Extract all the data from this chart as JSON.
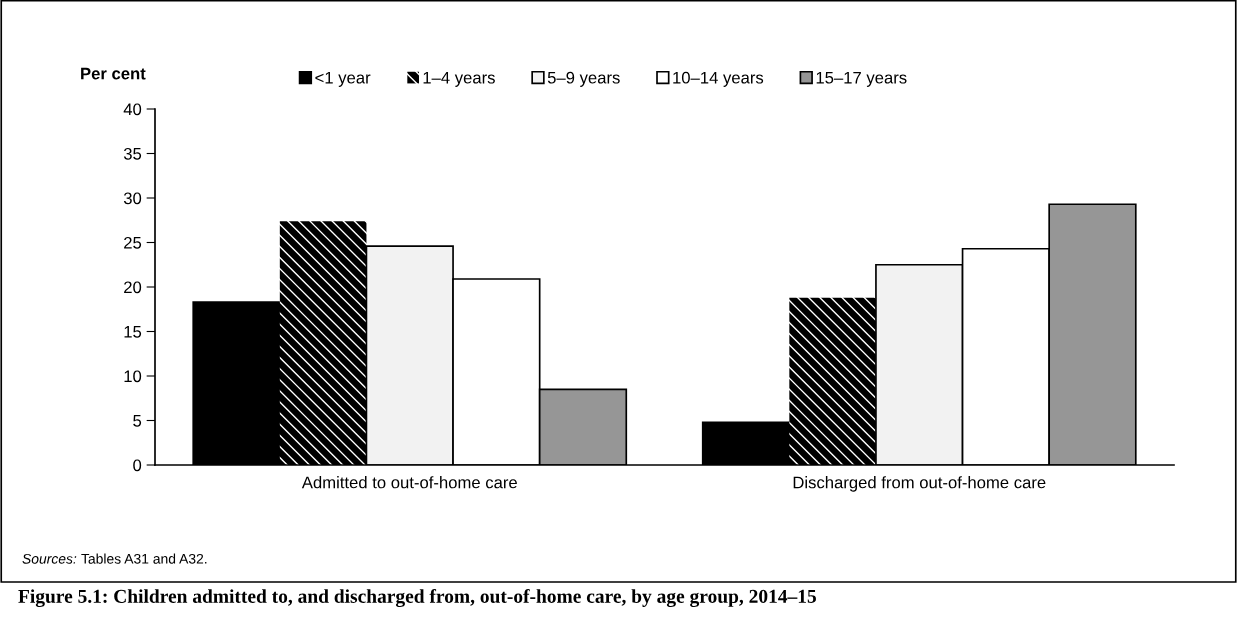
{
  "chart_data": {
    "type": "bar",
    "title": "Figure 5.1: Children admitted to, and discharged from, out-of-home care, by age group, 2014–15",
    "ylabel": "Per cent",
    "categories": [
      "Admitted to out-of-home care",
      "Discharged from out-of-home care"
    ],
    "series": [
      {
        "name": "<1 year",
        "color": "#000000",
        "values": [
          18.3,
          4.8
        ]
      },
      {
        "name": "1–4 years",
        "color": "#000000",
        "values": [
          27.4,
          18.8
        ]
      },
      {
        "name": "5–9 years",
        "color": "#f2f2f2",
        "values": [
          24.6,
          22.5
        ]
      },
      {
        "name": "10–14 years",
        "color": "#ffffff",
        "values": [
          20.9,
          24.3
        ]
      },
      {
        "name": "15–17 years",
        "color": "#969696",
        "values": [
          8.5,
          29.3
        ]
      }
    ],
    "ylim": [
      0,
      40
    ],
    "yticks": [
      0,
      5,
      10,
      15,
      20,
      25,
      30,
      35,
      40
    ],
    "grid": false,
    "legend": "top",
    "annotations": [
      "Sources: Tables A31 and A32."
    ]
  }
}
